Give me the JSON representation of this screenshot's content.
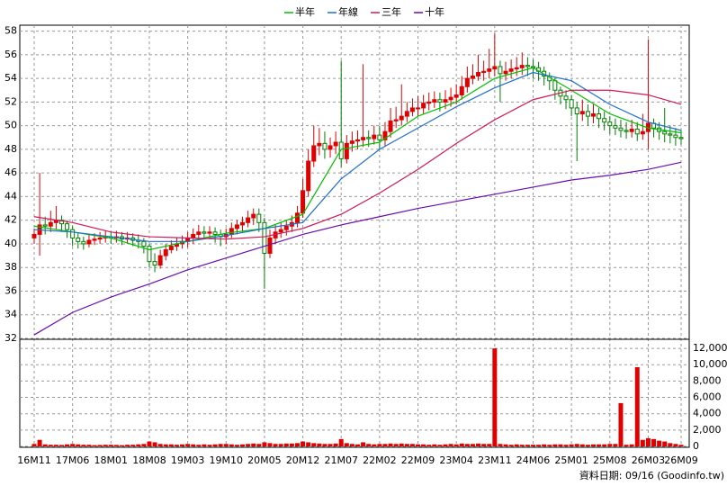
{
  "chart_data": {
    "type": "candlestick",
    "categories": [
      "16M11",
      null,
      null,
      null,
      null,
      null,
      null,
      "17M06",
      null,
      null,
      null,
      null,
      null,
      null,
      "18M01",
      null,
      null,
      null,
      null,
      null,
      null,
      "18M08",
      null,
      null,
      null,
      null,
      null,
      null,
      "19M03",
      null,
      null,
      null,
      null,
      null,
      null,
      "19M10",
      null,
      null,
      null,
      null,
      null,
      null,
      "20M05",
      null,
      null,
      null,
      null,
      null,
      null,
      "20M12",
      null,
      null,
      null,
      null,
      null,
      null,
      "21M07",
      null,
      null,
      null,
      null,
      null,
      null,
      "22M02",
      null,
      null,
      null,
      null,
      null,
      null,
      "22M09",
      null,
      null,
      null,
      null,
      null,
      null,
      "23M04",
      null,
      null,
      null,
      null,
      null,
      null,
      "23M11",
      null,
      null,
      null,
      null,
      null,
      null,
      "24M06",
      null,
      null,
      null,
      null,
      null,
      null,
      "25M01",
      null,
      null,
      null,
      null,
      null,
      null,
      "25M08",
      null,
      null,
      null,
      null,
      null,
      null,
      "26M03",
      null,
      null,
      null,
      null,
      null,
      "26M09"
    ],
    "open": [
      40.5,
      40.8,
      41.6,
      41.5,
      41.8,
      42.0,
      41.7,
      41.2,
      40.5,
      40.2,
      40.0,
      40.3,
      40.4,
      40.5,
      40.6,
      40.5,
      40.6,
      40.4,
      40.5,
      40.3,
      40.2,
      39.8,
      38.5,
      38.2,
      39.0,
      39.5,
      39.8,
      40.0,
      40.2,
      40.5,
      40.8,
      41.0,
      40.9,
      41.0,
      40.8,
      40.6,
      40.8,
      41.3,
      41.6,
      41.8,
      42.2,
      42.5,
      41.8,
      39.2,
      40.5,
      41.0,
      41.2,
      41.5,
      41.8,
      42.6,
      44.5,
      47.0,
      48.3,
      48.5,
      48.0,
      48.3,
      48.6,
      47.2,
      48.5,
      48.7,
      48.8,
      49.0,
      48.9,
      49.2,
      48.8,
      49.5,
      50.4,
      50.5,
      50.8,
      51.2,
      51.5,
      51.5,
      51.9,
      52.0,
      52.2,
      52.0,
      52.2,
      52.4,
      52.6,
      53.3,
      54.0,
      54.2,
      54.5,
      54.6,
      54.8,
      55.0,
      54.4,
      54.6,
      54.8,
      54.9,
      55.1,
      55.0,
      54.9,
      54.6,
      54.2,
      53.8,
      53.0,
      52.5,
      52.2,
      51.5,
      51.0,
      51.2,
      50.8,
      51.0,
      50.6,
      50.3,
      50.0,
      49.8,
      49.6,
      49.5,
      49.7,
      49.3,
      49.5,
      50.2,
      49.8,
      49.5,
      49.3,
      49.2,
      49.0
    ],
    "high": [
      41.3,
      46.0,
      42.3,
      42.8,
      43.2,
      42.4,
      42.0,
      41.5,
      40.9,
      40.6,
      40.8,
      40.9,
      41.0,
      41.1,
      41.0,
      41.1,
      41.0,
      41.0,
      40.9,
      40.8,
      40.5,
      40.0,
      39.2,
      39.5,
      40.0,
      40.3,
      40.5,
      40.7,
      41.0,
      41.3,
      41.6,
      41.5,
      41.5,
      41.4,
      41.2,
      41.3,
      41.8,
      42.0,
      42.3,
      42.8,
      43.0,
      43.0,
      42.2,
      41.2,
      41.6,
      41.8,
      42.0,
      42.4,
      43.2,
      45.5,
      48.0,
      50.0,
      49.8,
      49.5,
      49.0,
      49.5,
      55.5,
      49.2,
      49.5,
      49.6,
      55.2,
      49.6,
      50.0,
      50.0,
      50.3,
      51.5,
      51.6,
      53.5,
      52.0,
      52.3,
      52.5,
      52.6,
      52.8,
      52.9,
      52.8,
      53.0,
      53.2,
      53.5,
      54.2,
      55.0,
      55.2,
      56.0,
      55.5,
      56.5,
      57.8,
      55.5,
      55.4,
      55.6,
      55.8,
      56.2,
      55.8,
      55.6,
      55.4,
      55.0,
      54.5,
      54.0,
      53.3,
      53.0,
      52.6,
      52.0,
      52.2,
      51.8,
      51.8,
      51.5,
      51.2,
      50.8,
      50.6,
      50.5,
      50.3,
      50.5,
      50.3,
      51.0,
      57.3,
      50.6,
      50.3,
      51.5,
      50.0,
      49.8,
      49.6
    ],
    "low": [
      40.0,
      39.0,
      40.8,
      41.0,
      41.2,
      41.0,
      40.5,
      39.8,
      39.6,
      39.5,
      39.7,
      39.9,
      40.0,
      40.1,
      40.0,
      40.1,
      39.9,
      40.0,
      39.8,
      39.6,
      39.2,
      38.0,
      37.6,
      37.9,
      38.6,
      39.2,
      39.4,
      39.6,
      39.7,
      40.0,
      40.3,
      40.4,
      40.4,
      40.1,
      39.8,
      40.0,
      40.5,
      40.8,
      41.0,
      41.4,
      41.6,
      41.0,
      36.2,
      38.8,
      40.0,
      40.5,
      40.7,
      41.0,
      41.4,
      42.2,
      44.0,
      46.5,
      47.5,
      47.2,
      47.3,
      47.6,
      46.5,
      46.8,
      47.8,
      48.0,
      48.2,
      48.2,
      48.4,
      48.0,
      48.2,
      49.0,
      49.8,
      50.0,
      50.3,
      50.8,
      50.8,
      51.0,
      51.3,
      51.5,
      51.2,
      51.4,
      51.6,
      51.8,
      52.2,
      52.8,
      53.5,
      53.8,
      53.8,
      54.0,
      54.2,
      52.0,
      53.8,
      54.0,
      54.2,
      54.3,
      54.2,
      54.0,
      53.8,
      53.4,
      53.0,
      52.2,
      51.8,
      51.4,
      50.8,
      47.0,
      50.4,
      50.0,
      50.2,
      49.8,
      49.6,
      49.3,
      49.2,
      49.0,
      48.9,
      49.0,
      48.7,
      48.8,
      48.0,
      49.0,
      48.8,
      48.6,
      48.5,
      48.3,
      48.4
    ],
    "close": [
      40.8,
      41.6,
      41.5,
      41.8,
      42.0,
      41.7,
      41.2,
      40.5,
      40.2,
      40.0,
      40.3,
      40.4,
      40.5,
      40.6,
      40.5,
      40.6,
      40.4,
      40.5,
      40.3,
      40.2,
      39.8,
      38.5,
      38.2,
      39.0,
      39.5,
      39.8,
      40.0,
      40.2,
      40.5,
      40.8,
      41.0,
      40.9,
      41.0,
      40.8,
      40.6,
      40.8,
      41.3,
      41.6,
      41.8,
      42.2,
      42.5,
      41.8,
      39.2,
      40.5,
      41.0,
      41.2,
      41.5,
      41.8,
      42.6,
      44.5,
      47.0,
      48.3,
      48.5,
      48.0,
      48.3,
      48.6,
      47.2,
      48.5,
      48.7,
      48.8,
      49.0,
      48.9,
      49.2,
      48.8,
      49.5,
      50.4,
      50.5,
      50.8,
      51.2,
      51.5,
      51.5,
      51.9,
      52.0,
      52.2,
      52.0,
      52.2,
      52.4,
      52.6,
      53.3,
      54.0,
      54.2,
      54.5,
      54.6,
      54.8,
      55.0,
      54.4,
      54.6,
      54.8,
      54.9,
      55.1,
      55.0,
      54.9,
      54.6,
      54.2,
      53.8,
      53.0,
      52.5,
      52.2,
      51.5,
      51.0,
      51.2,
      50.8,
      51.0,
      50.6,
      50.3,
      50.0,
      49.8,
      49.6,
      49.5,
      49.7,
      49.3,
      49.5,
      50.2,
      49.8,
      49.5,
      49.3,
      49.2,
      49.0,
      48.9
    ],
    "up_color": "#e00000",
    "down_color": "#008000",
    "ylim": [
      32,
      58.5
    ],
    "yticks": [
      32,
      34,
      36,
      38,
      40,
      42,
      44,
      46,
      48,
      50,
      52,
      54,
      56,
      58
    ],
    "volume": {
      "axis": "y2",
      "color": "#e00000",
      "values": [
        300,
        800,
        250,
        200,
        200,
        180,
        250,
        300,
        250,
        200,
        200,
        150,
        180,
        200,
        200,
        180,
        150,
        200,
        200,
        250,
        300,
        600,
        500,
        300,
        250,
        250,
        200,
        250,
        300,
        250,
        200,
        250,
        200,
        250,
        300,
        300,
        250,
        200,
        250,
        300,
        350,
        300,
        500,
        400,
        300,
        300,
        350,
        350,
        400,
        600,
        500,
        400,
        350,
        300,
        300,
        350,
        900,
        400,
        300,
        250,
        500,
        300,
        250,
        300,
        300,
        350,
        300,
        350,
        300,
        300,
        250,
        250,
        200,
        250,
        200,
        250,
        300,
        250,
        350,
        300,
        300,
        350,
        300,
        300,
        12000,
        300,
        250,
        200,
        250,
        200,
        200,
        200,
        200,
        250,
        200,
        250,
        250,
        200,
        250,
        300,
        250,
        200,
        250,
        250,
        250,
        300,
        300,
        5300,
        200,
        250,
        9700,
        800,
        1000,
        900,
        700,
        600,
        400,
        300,
        200
      ]
    },
    "y2lim": [
      0,
      13000
    ],
    "y2ticks": [
      0,
      {
        "value": 2000,
        "label": "2,000"
      },
      {
        "value": 4000,
        "label": "4,000"
      },
      {
        "value": 6000,
        "label": "6,000"
      },
      {
        "value": 8000,
        "label": "8,000"
      },
      {
        "value": 10000,
        "label": "10,000"
      },
      {
        "value": 12000,
        "label": "12,000"
      }
    ],
    "series": [
      {
        "name": "半年",
        "color": "#00c000",
        "x": [
          "16M11",
          "17M06",
          "18M01",
          "18M08",
          "19M03",
          "19M10",
          "20M05",
          "20M12",
          "21M07",
          "22M02",
          "22M09",
          "23M04",
          "23M11",
          "24M06",
          "25M01",
          "25M08",
          "26M03",
          "26M09"
        ],
        "values": [
          41.5,
          41.0,
          40.5,
          39.5,
          40.2,
          40.9,
          41.3,
          42.5,
          48.0,
          48.6,
          50.8,
          52.0,
          54.0,
          54.9,
          53.0,
          51.0,
          49.8,
          49.4
        ]
      },
      {
        "name": "年線",
        "color": "#1e6fd0",
        "x": [
          "16M11",
          "17M06",
          "18M01",
          "18M08",
          "19M03",
          "19M10",
          "20M05",
          "20M12",
          "21M07",
          "22M02",
          "22M09",
          "23M04",
          "23M11",
          "24M06",
          "25M01",
          "25M08",
          "26M03",
          "26M09"
        ],
        "values": [
          41.2,
          41.0,
          40.6,
          40.2,
          40.2,
          40.7,
          41.3,
          41.8,
          45.5,
          48.0,
          49.8,
          51.6,
          53.2,
          54.5,
          53.8,
          51.8,
          50.3,
          49.6
        ]
      },
      {
        "name": "三年",
        "color": "#d0185a",
        "x": [
          "16M11",
          "17M06",
          "18M01",
          "18M08",
          "19M03",
          "19M10",
          "20M05",
          "20M12",
          "21M07",
          "22M02",
          "22M09",
          "23M04",
          "23M11",
          "24M06",
          "25M01",
          "25M08",
          "26M03",
          "26M09"
        ],
        "values": [
          42.3,
          41.8,
          41.0,
          40.6,
          40.5,
          40.4,
          40.6,
          41.3,
          42.5,
          44.3,
          46.3,
          48.5,
          50.5,
          52.2,
          53.0,
          53.0,
          52.6,
          51.8
        ]
      },
      {
        "name": "十年",
        "color": "#6a0dad",
        "x": [
          "16M11",
          "17M06",
          "18M01",
          "18M08",
          "19M03",
          "19M10",
          "20M05",
          "20M12",
          "21M07",
          "22M02",
          "22M09",
          "23M04",
          "23M11",
          "24M06",
          "25M01",
          "25M08",
          "26M03",
          "26M09"
        ],
        "values": [
          32.3,
          34.2,
          35.5,
          36.6,
          37.8,
          38.8,
          39.8,
          40.8,
          41.6,
          42.3,
          43.0,
          43.6,
          44.2,
          44.8,
          45.4,
          45.8,
          46.3,
          46.9
        ]
      }
    ],
    "grid": true,
    "source": "資料日期: 09/16 (Goodinfo.tw)"
  }
}
